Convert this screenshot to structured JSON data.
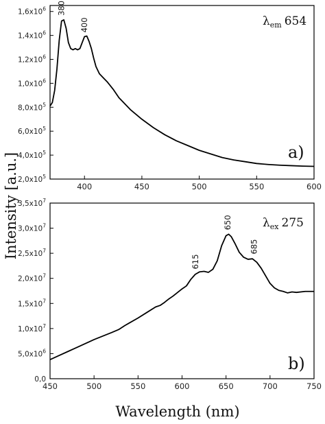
{
  "figure": {
    "ylabel": "Intensity [a.u.]",
    "xlabel": "Wavelength (nm)"
  },
  "chart_data": [
    {
      "type": "line",
      "panel_label": "a)",
      "annotation": {
        "symbol": "λ",
        "subscript": "em",
        "value": "654"
      },
      "xlim": [
        370,
        600
      ],
      "ylim": [
        200000,
        1650000
      ],
      "x_ticks": [
        400,
        450,
        500,
        550,
        600
      ],
      "x_tick_labels": [
        "400",
        "450",
        "500",
        "550",
        "600"
      ],
      "y_ticks": [
        200000,
        400000,
        600000,
        800000,
        1000000,
        1200000,
        1400000,
        1600000
      ],
      "y_tick_labels": [
        {
          "m": "2,0x10",
          "e": "5"
        },
        {
          "m": "4,0x10",
          "e": "5"
        },
        {
          "m": "6,0x10",
          "e": "5"
        },
        {
          "m": "8,0x10",
          "e": "5"
        },
        {
          "m": "1,0x10",
          "e": "6"
        },
        {
          "m": "1,2x10",
          "e": "6"
        },
        {
          "m": "1,4x10",
          "e": "6"
        },
        {
          "m": "1,6x10",
          "e": "6"
        }
      ],
      "peaks": [
        {
          "label": "380",
          "x": 380,
          "y": 1530000
        },
        {
          "label": "400",
          "x": 400,
          "y": 1390000
        }
      ],
      "series": [
        {
          "x": [
            370,
            372,
            374,
            376,
            378,
            380,
            382,
            384,
            386,
            388,
            390,
            392,
            394,
            396,
            398,
            400,
            402,
            404,
            406,
            408,
            410,
            413,
            416,
            420,
            425,
            430,
            440,
            450,
            460,
            470,
            480,
            490,
            500,
            510,
            520,
            530,
            540,
            550,
            560,
            570,
            580,
            590,
            600
          ],
          "y": [
            810000,
            840000,
            940000,
            1120000,
            1360000,
            1520000,
            1530000,
            1460000,
            1340000,
            1290000,
            1280000,
            1290000,
            1280000,
            1290000,
            1340000,
            1390000,
            1395000,
            1350000,
            1290000,
            1210000,
            1140000,
            1080000,
            1050000,
            1010000,
            950000,
            880000,
            780000,
            700000,
            630000,
            570000,
            520000,
            480000,
            440000,
            410000,
            380000,
            360000,
            345000,
            330000,
            322000,
            316000,
            312000,
            308000,
            306000
          ]
        }
      ]
    },
    {
      "type": "line",
      "panel_label": "b)",
      "annotation": {
        "symbol": "λ",
        "subscript": "ex",
        "value": "275"
      },
      "xlim": [
        450,
        750
      ],
      "ylim": [
        0,
        35000000
      ],
      "x_ticks": [
        450,
        500,
        550,
        600,
        650,
        700,
        750
      ],
      "x_tick_labels": [
        "450",
        "500",
        "550",
        "600",
        "650",
        "700",
        "750"
      ],
      "y_ticks": [
        0,
        5000000,
        10000000,
        15000000,
        20000000,
        25000000,
        30000000,
        35000000
      ],
      "y_tick_labels": [
        {
          "m": "0,0",
          "e": ""
        },
        {
          "m": "5,0x10",
          "e": "6"
        },
        {
          "m": "1,0x10",
          "e": "7"
        },
        {
          "m": "1,5x10",
          "e": "7"
        },
        {
          "m": "2,0x10",
          "e": "7"
        },
        {
          "m": "2,5x10",
          "e": "7"
        },
        {
          "m": "3,0x10",
          "e": "7"
        },
        {
          "m": "3,5x10",
          "e": "7"
        }
      ],
      "peaks": [
        {
          "label": "615",
          "x": 615,
          "y": 21000000
        },
        {
          "label": "650",
          "x": 652,
          "y": 28800000
        },
        {
          "label": "685",
          "x": 682,
          "y": 24000000
        }
      ],
      "series": [
        {
          "x": [
            450,
            460,
            470,
            480,
            490,
            500,
            510,
            520,
            528,
            535,
            540,
            550,
            560,
            570,
            575,
            580,
            585,
            590,
            595,
            600,
            605,
            610,
            615,
            620,
            625,
            630,
            635,
            640,
            645,
            650,
            653,
            656,
            660,
            665,
            670,
            675,
            680,
            685,
            690,
            695,
            700,
            705,
            710,
            715,
            720,
            725,
            730,
            740,
            750
          ],
          "y": [
            3800000,
            4600000,
            5400000,
            6200000,
            7000000,
            7800000,
            8500000,
            9200000,
            9800000,
            10600000,
            11100000,
            12100000,
            13200000,
            14300000,
            14600000,
            15200000,
            15900000,
            16500000,
            17200000,
            17900000,
            18500000,
            19800000,
            20800000,
            21300000,
            21400000,
            21200000,
            21800000,
            23500000,
            26500000,
            28500000,
            28800000,
            28300000,
            27000000,
            25200000,
            24200000,
            23800000,
            23900000,
            23200000,
            22000000,
            20500000,
            19000000,
            18100000,
            17600000,
            17400000,
            17100000,
            17300000,
            17200000,
            17400000,
            17400000
          ]
        }
      ]
    }
  ]
}
